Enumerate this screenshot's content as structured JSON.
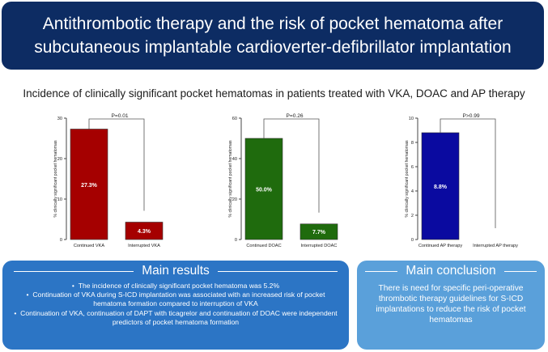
{
  "title": "Antithrombotic therapy and the risk of pocket hematoma after subcutaneous implantable cardioverter-defibrillator implantation",
  "subtitle": "Incidence of clinically significant pocket hematomas in patients treated with VKA, DOAC and AP therapy",
  "chart_data": [
    {
      "type": "bar",
      "categories": [
        "Continued VKA",
        "Interrupted VKA"
      ],
      "values": [
        27.3,
        4.3
      ],
      "data_labels": [
        "27.3%",
        "4.3%"
      ],
      "ylabel": "% clinically significant pocket hematomas",
      "ylim": [
        0,
        30
      ],
      "yticks": [
        "0",
        "10",
        "20",
        "30"
      ],
      "pvalue": "P=0.01",
      "colors": [
        "#a50000",
        "#a50000"
      ]
    },
    {
      "type": "bar",
      "categories": [
        "Continued DOAC",
        "Interrupted DOAC"
      ],
      "values": [
        50.0,
        7.7
      ],
      "data_labels": [
        "50.0%",
        "7.7%"
      ],
      "ylabel": "% clinically significant pocket hematomas",
      "ylim": [
        0,
        60
      ],
      "yticks": [
        "0",
        "20",
        "40",
        "60"
      ],
      "pvalue": "P=0.26",
      "colors": [
        "#1f6b0d",
        "#1f6b0d"
      ]
    },
    {
      "type": "bar",
      "categories": [
        "Continued AP therapy",
        "Interrupted AP therapy"
      ],
      "values": [
        8.8,
        0
      ],
      "data_labels": [
        "8.8%",
        ""
      ],
      "ylabel": "% clinically significant pocket hematomas",
      "ylim": [
        0,
        10
      ],
      "yticks": [
        "0",
        "2",
        "4",
        "6",
        "8",
        "10"
      ],
      "pvalue": "P>0.99",
      "colors": [
        "#0a0aa0",
        "#0a0aa0"
      ]
    }
  ],
  "results": {
    "heading": "Main results",
    "items": [
      "The incidence of clinically significant pocket hematoma was 5.2%",
      "Continuation of VKA during S-ICD implantation was associated with an increased risk of pocket hematoma formation compared to interruption of VKA",
      "Continuation of  VKA, continuation of DAPT with ticagrelor and continuation of DOAC were independent predictors of pocket hematoma formation"
    ]
  },
  "conclusion": {
    "heading": "Main conclusion",
    "text": "There is need for specific peri-operative thrombotic therapy guidelines for S-ICD implantations to reduce the risk of pocket hematomas"
  },
  "colors": {
    "banner": "#0d2c63",
    "results_box": "#2c75c5",
    "conclusion_box": "#5aa0da"
  }
}
